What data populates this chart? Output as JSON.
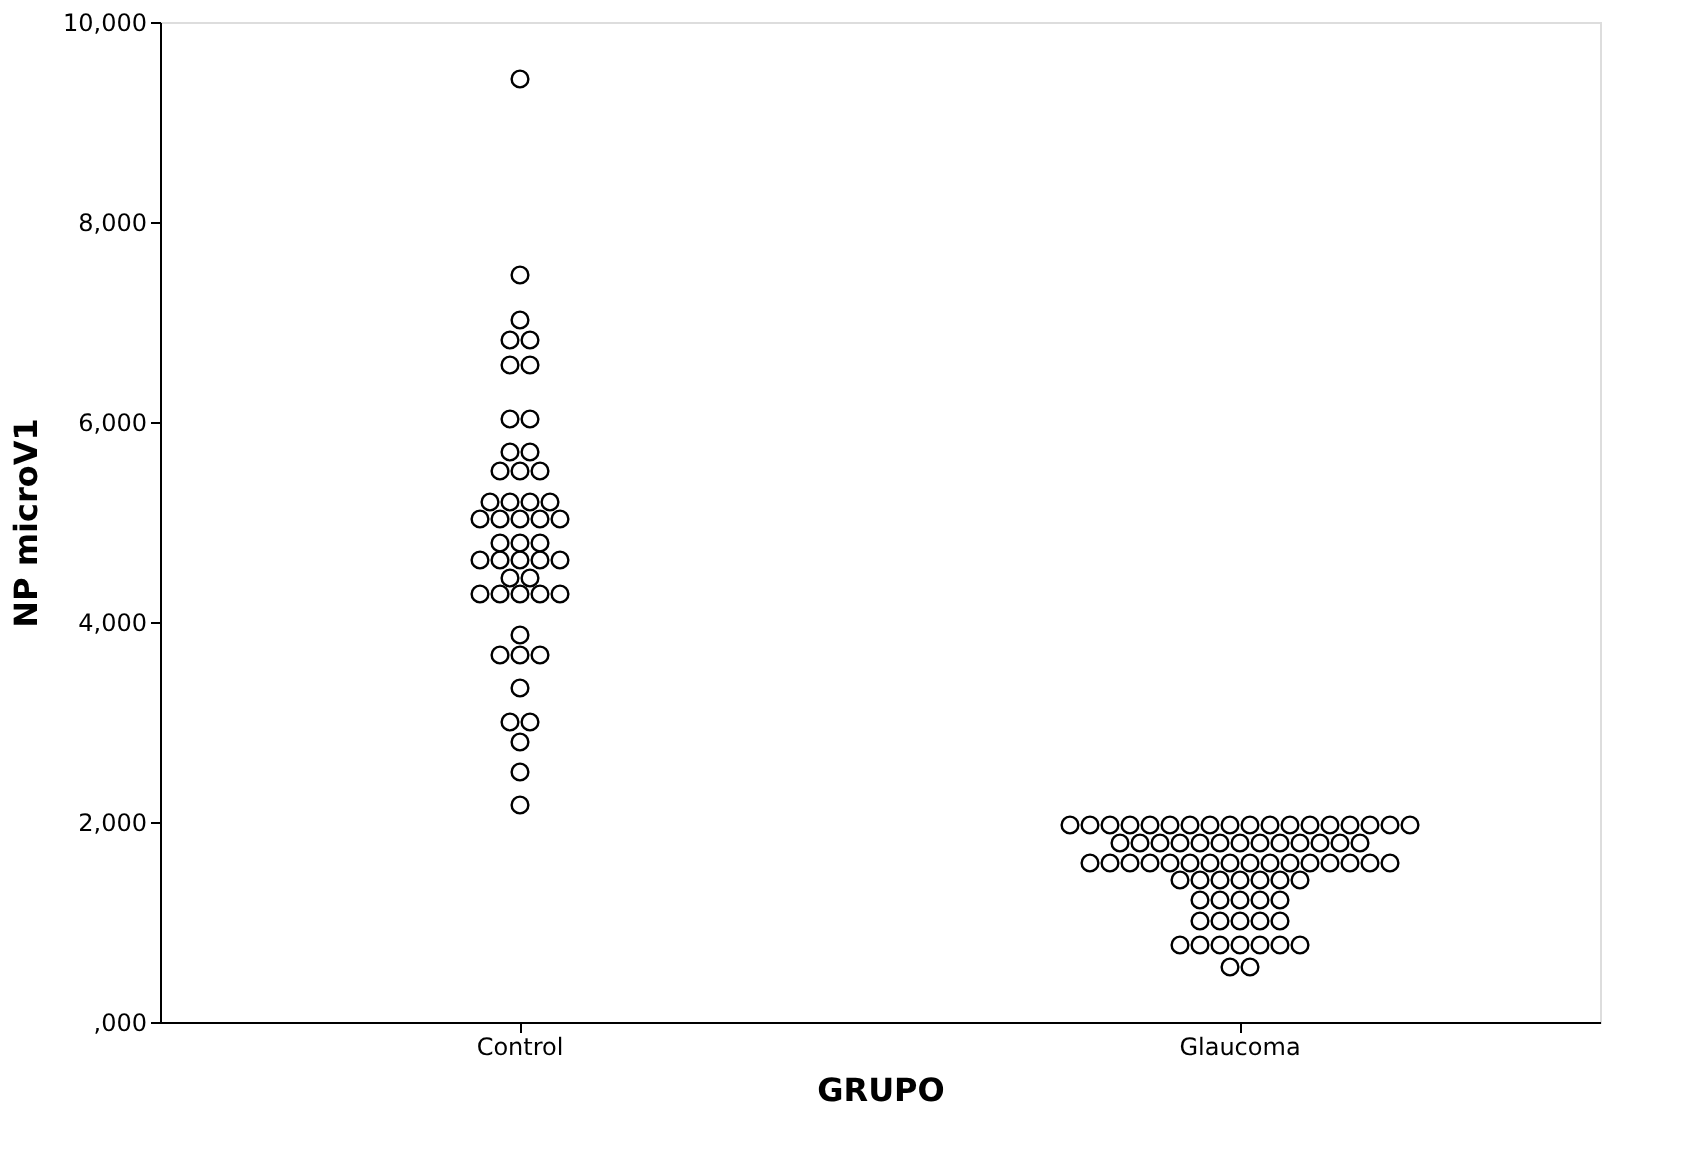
{
  "chart_data": {
    "type": "scatter",
    "xlabel": "GRUPO",
    "ylabel": "NP microV1",
    "categories": [
      "Control",
      "Glaucoma"
    ],
    "marker": "circle",
    "grid": false,
    "legend": false,
    "ylim": [
      0,
      10000
    ],
    "yticks": [
      {
        "value": 0,
        "label": ",000"
      },
      {
        "value": 2000,
        "label": "2,000"
      },
      {
        "value": 4000,
        "label": "4,000"
      },
      {
        "value": 6000,
        "label": "6,000"
      },
      {
        "value": 8000,
        "label": "8,000"
      },
      {
        "value": 10000,
        "label": "10,000"
      }
    ],
    "series": [
      {
        "color": "#000000",
        "x": [
          "Control",
          "Control",
          "Control",
          "Control",
          "Control",
          "Control",
          "Control",
          "Control",
          "Control",
          "Control",
          "Control",
          "Control",
          "Control",
          "Control",
          "Control",
          "Control",
          "Control",
          "Control",
          "Control",
          "Control",
          "Control",
          "Control",
          "Control",
          "Control",
          "Control",
          "Control",
          "Control",
          "Control",
          "Control",
          "Control",
          "Control",
          "Control",
          "Control",
          "Control",
          "Control",
          "Control",
          "Control",
          "Control",
          "Control",
          "Control",
          "Control",
          "Control",
          "Control",
          "Control",
          "Control",
          "Control",
          "Control",
          "Control"
        ],
        "values": [
          9430,
          7470,
          7020,
          6820,
          6820,
          6570,
          6570,
          6030,
          6030,
          5700,
          5700,
          5510,
          5510,
          5510,
          5200,
          5200,
          5200,
          5200,
          5030,
          5030,
          5030,
          5030,
          5030,
          4790,
          4790,
          4790,
          4620,
          4620,
          4620,
          4620,
          4620,
          4440,
          4440,
          4280,
          4280,
          4280,
          4280,
          4280,
          3870,
          3670,
          3670,
          3670,
          3340,
          3000,
          3000,
          2800,
          2500,
          2170
        ]
      },
      {
        "color": "#000000",
        "x": [
          "Glaucoma",
          "Glaucoma",
          "Glaucoma",
          "Glaucoma",
          "Glaucoma",
          "Glaucoma",
          "Glaucoma",
          "Glaucoma",
          "Glaucoma",
          "Glaucoma",
          "Glaucoma",
          "Glaucoma",
          "Glaucoma",
          "Glaucoma",
          "Glaucoma",
          "Glaucoma",
          "Glaucoma",
          "Glaucoma",
          "Glaucoma",
          "Glaucoma",
          "Glaucoma",
          "Glaucoma",
          "Glaucoma",
          "Glaucoma",
          "Glaucoma",
          "Glaucoma",
          "Glaucoma",
          "Glaucoma",
          "Glaucoma",
          "Glaucoma",
          "Glaucoma",
          "Glaucoma",
          "Glaucoma",
          "Glaucoma",
          "Glaucoma",
          "Glaucoma",
          "Glaucoma",
          "Glaucoma",
          "Glaucoma",
          "Glaucoma",
          "Glaucoma",
          "Glaucoma",
          "Glaucoma",
          "Glaucoma",
          "Glaucoma",
          "Glaucoma",
          "Glaucoma",
          "Glaucoma",
          "Glaucoma",
          "Glaucoma",
          "Glaucoma",
          "Glaucoma",
          "Glaucoma",
          "Glaucoma",
          "Glaucoma",
          "Glaucoma",
          "Glaucoma",
          "Glaucoma",
          "Glaucoma",
          "Glaucoma",
          "Glaucoma",
          "Glaucoma",
          "Glaucoma",
          "Glaucoma",
          "Glaucoma",
          "Glaucoma",
          "Glaucoma",
          "Glaucoma",
          "Glaucoma",
          "Glaucoma",
          "Glaucoma",
          "Glaucoma",
          "Glaucoma"
        ],
        "values": [
          1970,
          1970,
          1970,
          1970,
          1970,
          1970,
          1970,
          1970,
          1970,
          1970,
          1970,
          1970,
          1970,
          1970,
          1970,
          1970,
          1970,
          1970,
          1790,
          1790,
          1790,
          1790,
          1790,
          1790,
          1790,
          1790,
          1790,
          1790,
          1790,
          1790,
          1790,
          1590,
          1590,
          1590,
          1590,
          1590,
          1590,
          1590,
          1590,
          1590,
          1590,
          1590,
          1590,
          1590,
          1590,
          1590,
          1590,
          1420,
          1420,
          1420,
          1420,
          1420,
          1420,
          1420,
          1220,
          1220,
          1220,
          1220,
          1220,
          1010,
          1010,
          1010,
          1010,
          1010,
          770,
          770,
          770,
          770,
          770,
          770,
          770,
          550,
          550
        ]
      }
    ]
  }
}
